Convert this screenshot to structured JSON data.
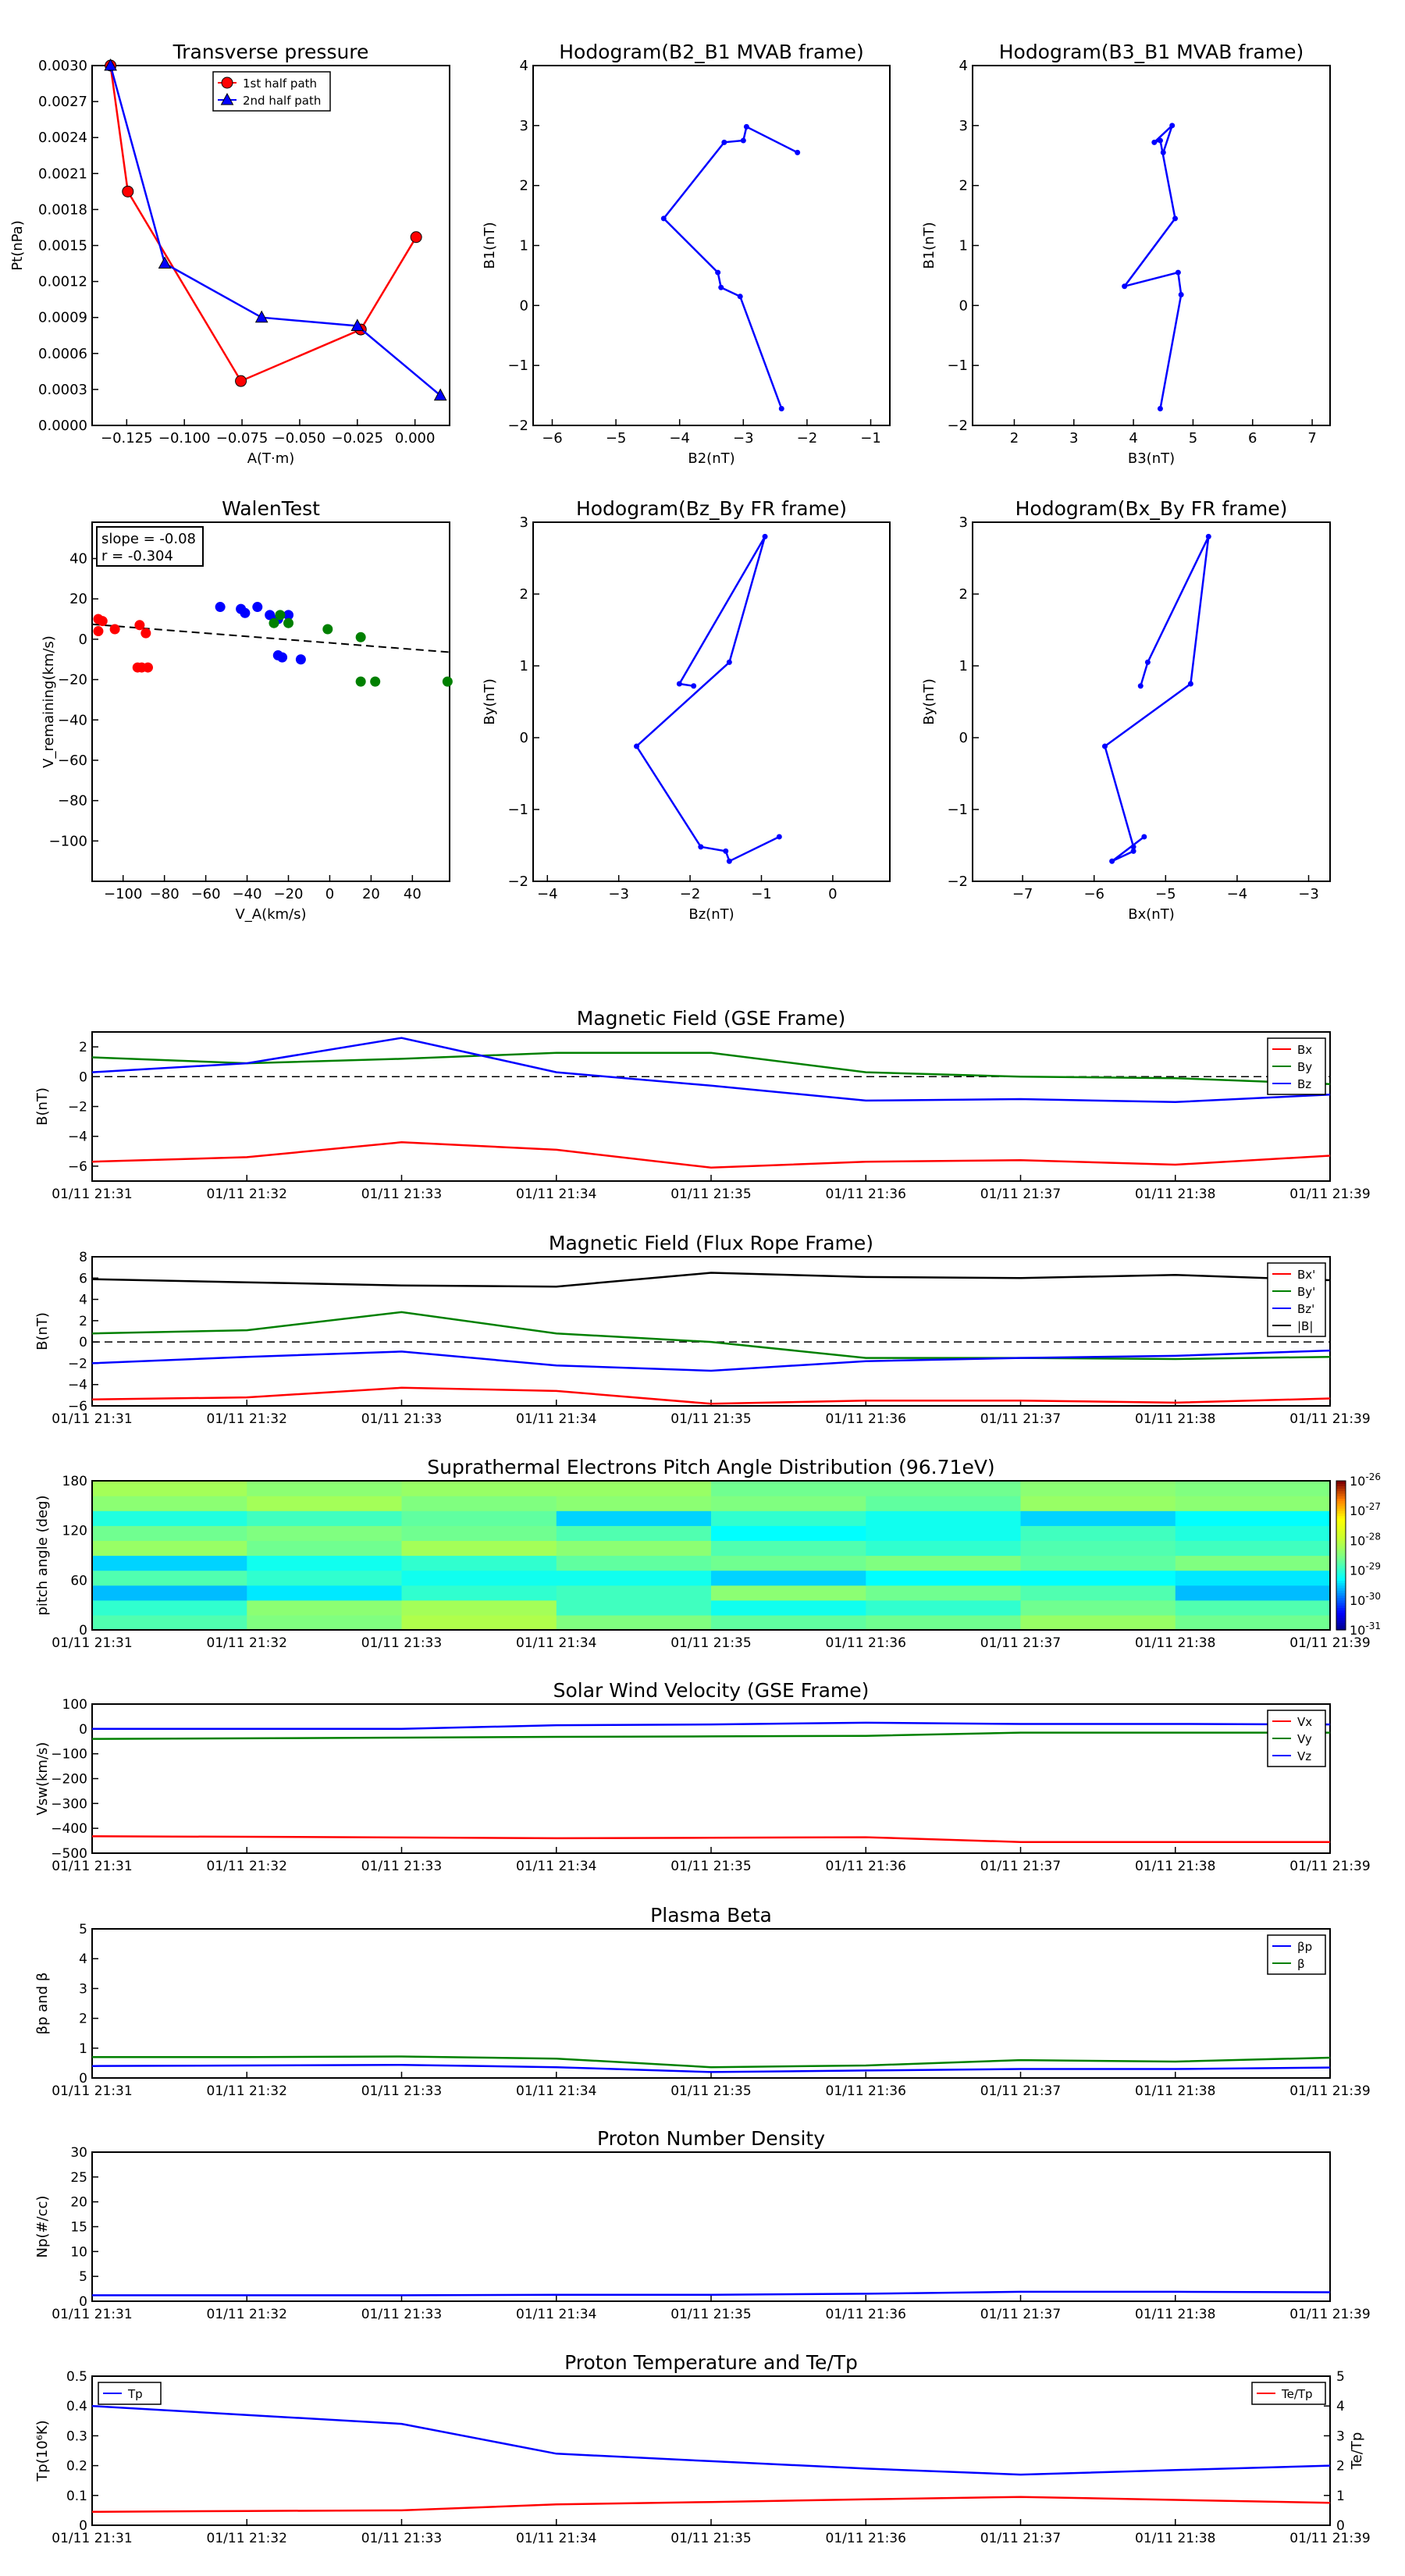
{
  "palette": {
    "red": "#ff0000",
    "green": "#008000",
    "blue": "#0000ff",
    "black": "#000000"
  },
  "time_labels": [
    "01/11 21:31",
    "01/11 21:32",
    "01/11 21:33",
    "01/11 21:34",
    "01/11 21:35",
    "01/11 21:36",
    "01/11 21:37",
    "01/11 21:38",
    "01/11 21:39"
  ],
  "chart_data": [
    {
      "id": "pt",
      "type": "line",
      "title": "Transverse pressure",
      "xlabel": "A(T·m)",
      "ylabel": "Pt(nPa)",
      "xlim": [
        -0.14,
        0.015
      ],
      "ylim": [
        0,
        0.003
      ],
      "xticks": [
        -0.125,
        -0.1,
        -0.075,
        -0.05,
        -0.025,
        0.0
      ],
      "xtick_labels": [
        "−0.125",
        "−0.100",
        "−0.075",
        "−0.050",
        "−0.025",
        "0.000"
      ],
      "yticks": [
        0,
        0.0003,
        0.0006,
        0.0009,
        0.0012,
        0.0015,
        0.0018,
        0.0021,
        0.0024,
        0.0027,
        0.003
      ],
      "ytick_labels": [
        "0.0000",
        "0.0003",
        "0.0006",
        "0.0009",
        "0.0012",
        "0.0015",
        "0.0018",
        "0.0021",
        "0.0024",
        "0.0027",
        "0.0030"
      ],
      "legend": {
        "position": "upper-center",
        "entries": [
          "1st half path",
          "2nd half path"
        ]
      },
      "series": [
        {
          "name": "1st half path",
          "color": "red",
          "marker": "circle",
          "x": [
            -0.132,
            -0.1245,
            -0.0755,
            -0.0235,
            0.0005
          ],
          "y": [
            0.003,
            0.00195,
            0.00037,
            0.0008,
            0.00157
          ]
        },
        {
          "name": "2nd half path",
          "color": "blue",
          "marker": "triangle",
          "x": [
            -0.132,
            -0.1085,
            -0.0665,
            -0.025,
            0.011
          ],
          "y": [
            0.003,
            0.00135,
            0.0009,
            0.00083,
            0.00025
          ]
        }
      ]
    },
    {
      "id": "h1",
      "type": "line",
      "title": "Hodogram(B2_B1 MVAB frame)",
      "xlabel": "B2(nT)",
      "ylabel": "B1(nT)",
      "xlim": [
        -6.3,
        -0.7
      ],
      "ylim": [
        -2,
        4
      ],
      "xticks": [
        -6,
        -5,
        -4,
        -3,
        -2,
        -1
      ],
      "xtick_labels": [
        "−6",
        "−5",
        "−4",
        "−3",
        "−2",
        "−1"
      ],
      "yticks": [
        -2,
        -1,
        0,
        1,
        2,
        3,
        4
      ],
      "ytick_labels": [
        "−2",
        "−1",
        "0",
        "1",
        "2",
        "3",
        "4"
      ],
      "series": [
        {
          "color": "blue",
          "marker": "dot",
          "x": [
            -2.15,
            -2.95,
            -3.0,
            -3.3,
            -4.25,
            -3.4,
            -3.35,
            -3.05,
            -2.4
          ],
          "y": [
            2.55,
            2.98,
            2.75,
            2.72,
            1.45,
            0.55,
            0.3,
            0.15,
            -1.72
          ]
        }
      ]
    },
    {
      "id": "h2",
      "type": "line",
      "title": "Hodogram(B3_B1 MVAB frame)",
      "xlabel": "B3(nT)",
      "ylabel": "B1(nT)",
      "xlim": [
        1.3,
        7.3
      ],
      "ylim": [
        -2,
        4
      ],
      "xticks": [
        2,
        3,
        4,
        5,
        6,
        7
      ],
      "xtick_labels": [
        "2",
        "3",
        "4",
        "5",
        "6",
        "7"
      ],
      "yticks": [
        -2,
        -1,
        0,
        1,
        2,
        3,
        4
      ],
      "ytick_labels": [
        "−2",
        "−1",
        "0",
        "1",
        "2",
        "3",
        "4"
      ],
      "series": [
        {
          "color": "blue",
          "marker": "dot",
          "x": [
            4.5,
            4.65,
            4.35,
            4.45,
            4.7,
            3.85,
            4.75,
            4.8,
            4.45
          ],
          "y": [
            2.55,
            3.0,
            2.72,
            2.75,
            1.45,
            0.32,
            0.55,
            0.18,
            -1.72
          ]
        }
      ]
    },
    {
      "id": "walen",
      "type": "scatter",
      "title": "WalenTest",
      "xlabel": "V_A(km/s)",
      "ylabel": "V_remaining(km/s)",
      "xlim": [
        -115,
        58
      ],
      "ylim": [
        -120,
        58
      ],
      "xticks": [
        -100,
        -80,
        -60,
        -40,
        -20,
        0,
        20,
        40
      ],
      "xtick_labels": [
        "−100",
        "−80",
        "−60",
        "−40",
        "−20",
        "0",
        "20",
        "40"
      ],
      "yticks": [
        -100,
        -80,
        -60,
        -40,
        -20,
        0,
        20,
        40
      ],
      "ytick_labels": [
        "−100",
        "−80",
        "−60",
        "−40",
        "−20",
        "0",
        "20",
        "40"
      ],
      "annotation": [
        "slope = -0.08",
        "r = -0.304"
      ],
      "fit_line": {
        "slope": -0.08,
        "intercept": -1.8
      },
      "series": [
        {
          "color": "red",
          "x": [
            -112,
            -110,
            -112,
            -104,
            -92,
            -89,
            -93,
            -91,
            -88
          ],
          "y": [
            10,
            9,
            4,
            5,
            7,
            3,
            -14,
            -14,
            -14
          ]
        },
        {
          "color": "blue",
          "x": [
            -53,
            -43,
            -41,
            -35,
            -29,
            -25,
            -20,
            -25,
            -23,
            -14
          ],
          "y": [
            16,
            15,
            13,
            16,
            12,
            10,
            12,
            -8,
            -9,
            -10
          ]
        },
        {
          "color": "green",
          "x": [
            -27,
            -20,
            -24,
            -1,
            15,
            15,
            22,
            57
          ],
          "y": [
            8,
            8,
            12,
            5,
            1,
            -21,
            -21,
            -21
          ]
        }
      ]
    },
    {
      "id": "h3",
      "type": "line",
      "title": "Hodogram(Bz_By FR frame)",
      "xlabel": "Bz(nT)",
      "ylabel": "By(nT)",
      "xlim": [
        -4.2,
        0.8
      ],
      "ylim": [
        -2,
        3
      ],
      "xticks": [
        -4,
        -3,
        -2,
        -1,
        0
      ],
      "xtick_labels": [
        "−4",
        "−3",
        "−2",
        "−1",
        "0"
      ],
      "yticks": [
        -2,
        -1,
        0,
        1,
        2,
        3
      ],
      "ytick_labels": [
        "−2",
        "−1",
        "0",
        "1",
        "2",
        "3"
      ],
      "series": [
        {
          "color": "blue",
          "marker": "dot",
          "x": [
            -1.95,
            -2.15,
            -0.95,
            -1.45,
            -2.75,
            -1.85,
            -1.5,
            -1.45,
            -0.75
          ],
          "y": [
            0.72,
            0.75,
            2.8,
            1.05,
            -0.12,
            -1.52,
            -1.58,
            -1.72,
            -1.38
          ]
        }
      ]
    },
    {
      "id": "h4",
      "type": "line",
      "title": "Hodogram(Bx_By FR frame)",
      "xlabel": "Bx(nT)",
      "ylabel": "By(nT)",
      "xlim": [
        -7.7,
        -2.7
      ],
      "ylim": [
        -2,
        3
      ],
      "xticks": [
        -7,
        -6,
        -5,
        -4,
        -3
      ],
      "xtick_labels": [
        "−7",
        "−6",
        "−5",
        "−4",
        "−3"
      ],
      "yticks": [
        -2,
        -1,
        0,
        1,
        2,
        3
      ],
      "ytick_labels": [
        "−2",
        "−1",
        "0",
        "1",
        "2",
        "3"
      ],
      "series": [
        {
          "color": "blue",
          "marker": "dot",
          "x": [
            -5.35,
            -5.25,
            -4.4,
            -4.65,
            -5.85,
            -5.45,
            -5.45,
            -5.75,
            -5.3
          ],
          "y": [
            0.72,
            1.05,
            2.8,
            0.75,
            -0.12,
            -1.52,
            -1.58,
            -1.72,
            -1.38
          ]
        }
      ]
    },
    {
      "id": "mag_gse",
      "type": "line",
      "title": "Magnetic Field (GSE Frame)",
      "ylabel": "B(nT)",
      "ylim": [
        -7,
        3
      ],
      "yticks": [
        -6,
        -4,
        -2,
        0,
        2
      ],
      "ytick_labels": [
        "−6",
        "−4",
        "−2",
        "0",
        "2"
      ],
      "zero_line": true,
      "legend": {
        "position": "upper-right",
        "entries": [
          "Bx",
          "By",
          "Bz"
        ]
      },
      "series": [
        {
          "name": "Bx",
          "color": "red",
          "values": [
            -5.7,
            -5.4,
            -4.4,
            -4.9,
            -6.1,
            -5.7,
            -5.6,
            -5.9,
            -5.3
          ]
        },
        {
          "name": "By",
          "color": "green",
          "values": [
            1.3,
            0.9,
            1.2,
            1.6,
            1.6,
            0.3,
            0.0,
            -0.1,
            -0.5
          ]
        },
        {
          "name": "Bz",
          "color": "blue",
          "values": [
            0.3,
            0.9,
            2.6,
            0.3,
            -0.6,
            -1.6,
            -1.5,
            -1.7,
            -1.2
          ]
        }
      ]
    },
    {
      "id": "mag_fr",
      "type": "line",
      "title": "Magnetic Field (Flux Rope Frame)",
      "ylabel": "B(nT)",
      "ylim": [
        -6,
        8
      ],
      "yticks": [
        -6,
        -4,
        -2,
        0,
        2,
        4,
        6,
        8
      ],
      "ytick_labels": [
        "−6",
        "−4",
        "−2",
        "0",
        "2",
        "4",
        "6",
        "8"
      ],
      "zero_line": true,
      "legend": {
        "position": "upper-right",
        "entries": [
          "Bx'",
          "By'",
          "Bz'",
          "|B|"
        ]
      },
      "series": [
        {
          "name": "Bx'",
          "color": "red",
          "values": [
            -5.4,
            -5.2,
            -4.3,
            -4.6,
            -5.8,
            -5.5,
            -5.5,
            -5.7,
            -5.3
          ]
        },
        {
          "name": "By'",
          "color": "green",
          "values": [
            0.8,
            1.1,
            2.8,
            0.8,
            0.0,
            -1.5,
            -1.5,
            -1.6,
            -1.4
          ]
        },
        {
          "name": "Bz'",
          "color": "blue",
          "values": [
            -2.0,
            -1.4,
            -0.9,
            -2.2,
            -2.7,
            -1.8,
            -1.5,
            -1.3,
            -0.8
          ]
        },
        {
          "name": "|B|",
          "color": "black",
          "values": [
            5.9,
            5.6,
            5.3,
            5.2,
            6.5,
            6.1,
            6.0,
            6.3,
            5.8
          ]
        }
      ]
    },
    {
      "id": "pad",
      "type": "heatmap",
      "title": "Suprathermal Electrons Pitch Angle Distribution (96.71eV)",
      "ylabel": "pitch angle (deg)",
      "ylim": [
        0,
        180
      ],
      "yticks": [
        0,
        60,
        120,
        180
      ],
      "ytick_labels": [
        "0",
        "60",
        "120",
        "180"
      ],
      "colorbar": {
        "ticks_exp": [
          "-26",
          "-27",
          "-28",
          "-29",
          "-30",
          "-31"
        ],
        "base": "10",
        "log_range": [
          -31,
          -26
        ]
      },
      "log_values": [
        [
          -28.8,
          -28.5,
          -28.1,
          -28.5,
          -28.7,
          -28.6,
          -28.3,
          -28.6
        ],
        [
          -29.0,
          -28.4,
          -28.2,
          -28.9,
          -29.2,
          -29.0,
          -28.6,
          -28.8
        ],
        [
          -29.6,
          -29.4,
          -29.0,
          -28.9,
          -28.4,
          -28.6,
          -28.8,
          -29.6
        ],
        [
          -28.8,
          -29.0,
          -29.2,
          -29.2,
          -29.5,
          -29.3,
          -29.3,
          -29.4
        ],
        [
          -29.5,
          -29.2,
          -29.0,
          -28.7,
          -28.6,
          -28.5,
          -28.7,
          -28.5
        ],
        [
          -28.3,
          -28.6,
          -28.2,
          -28.4,
          -28.8,
          -29.0,
          -28.8,
          -28.9
        ],
        [
          -28.6,
          -28.5,
          -28.6,
          -28.8,
          -29.3,
          -29.2,
          -28.9,
          -29.1
        ],
        [
          -29.1,
          -28.9,
          -28.7,
          -29.5,
          -29.0,
          -29.2,
          -29.5,
          -29.3
        ],
        [
          -28.4,
          -28.2,
          -28.5,
          -28.4,
          -28.5,
          -28.7,
          -28.3,
          -28.4
        ],
        [
          -28.2,
          -28.4,
          -28.3,
          -28.3,
          -28.6,
          -28.6,
          -28.4,
          -28.5
        ]
      ]
    },
    {
      "id": "vsw",
      "type": "line",
      "title": "Solar Wind Velocity (GSE Frame)",
      "ylabel": "Vsw(km/s)",
      "ylim": [
        -500,
        100
      ],
      "yticks": [
        -500,
        -400,
        -300,
        -200,
        -100,
        0,
        100
      ],
      "ytick_labels": [
        "−500",
        "−400",
        "−300",
        "−200",
        "−100",
        "0",
        "100"
      ],
      "legend": {
        "position": "upper-right",
        "entries": [
          "Vx",
          "Vy",
          "Vz"
        ]
      },
      "series": [
        {
          "name": "Vx",
          "color": "red",
          "values": [
            -432,
            -434,
            -437,
            -440,
            -438,
            -436,
            -455,
            -455,
            -455
          ]
        },
        {
          "name": "Vy",
          "color": "green",
          "values": [
            -40,
            -38,
            -35,
            -32,
            -30,
            -28,
            -15,
            -15,
            -15
          ]
        },
        {
          "name": "Vz",
          "color": "blue",
          "values": [
            0,
            0,
            0,
            15,
            18,
            25,
            20,
            20,
            18
          ]
        }
      ]
    },
    {
      "id": "beta",
      "type": "line",
      "title": "Plasma Beta",
      "ylabel": "βp and β",
      "ylim": [
        0,
        5
      ],
      "yticks": [
        0,
        1,
        2,
        3,
        4,
        5
      ],
      "ytick_labels": [
        "0",
        "1",
        "2",
        "3",
        "4",
        "5"
      ],
      "legend": {
        "position": "upper-right",
        "entries": [
          "βp",
          "β"
        ]
      },
      "series": [
        {
          "name": "βp",
          "color": "blue",
          "values": [
            0.4,
            0.42,
            0.44,
            0.36,
            0.2,
            0.25,
            0.3,
            0.3,
            0.35
          ]
        },
        {
          "name": "β",
          "color": "green",
          "values": [
            0.7,
            0.7,
            0.72,
            0.65,
            0.36,
            0.42,
            0.6,
            0.55,
            0.68
          ]
        }
      ]
    },
    {
      "id": "np",
      "type": "line",
      "title": "Proton Number Density",
      "ylabel": "Np(#/cc)",
      "ylim": [
        0,
        30
      ],
      "yticks": [
        0,
        5,
        10,
        15,
        20,
        25,
        30
      ],
      "ytick_labels": [
        "0",
        "5",
        "10",
        "15",
        "20",
        "25",
        "30"
      ],
      "series": [
        {
          "name": "Np",
          "color": "blue",
          "values": [
            1.2,
            1.2,
            1.2,
            1.3,
            1.3,
            1.5,
            1.9,
            1.9,
            1.8
          ]
        }
      ]
    },
    {
      "id": "tp",
      "type": "line",
      "title": "Proton Temperature and Te/Tp",
      "ylabel": "Tp(10⁶K)",
      "ylim": [
        0,
        0.5
      ],
      "yticks": [
        0,
        0.1,
        0.2,
        0.3,
        0.4,
        0.5
      ],
      "ytick_labels": [
        "0",
        "0.1",
        "0.2",
        "0.3",
        "0.4",
        "0.5"
      ],
      "y2label": "Te/Tp",
      "y2lim": [
        0,
        5
      ],
      "y2ticks": [
        0,
        1,
        2,
        3,
        4,
        5
      ],
      "y2tick_labels": [
        "0",
        "1",
        "2",
        "3",
        "4",
        "5"
      ],
      "legend_left": [
        "Tp"
      ],
      "legend_right": [
        "Te/Tp"
      ],
      "series": [
        {
          "name": "Tp",
          "color": "blue",
          "axis": "left",
          "values": [
            0.4,
            0.37,
            0.34,
            0.24,
            0.215,
            0.19,
            0.17,
            0.185,
            0.2
          ]
        },
        {
          "name": "Te/Tp",
          "color": "red",
          "axis": "right",
          "values": [
            0.45,
            0.48,
            0.5,
            0.7,
            0.78,
            0.87,
            0.95,
            0.85,
            0.75
          ]
        }
      ]
    }
  ]
}
